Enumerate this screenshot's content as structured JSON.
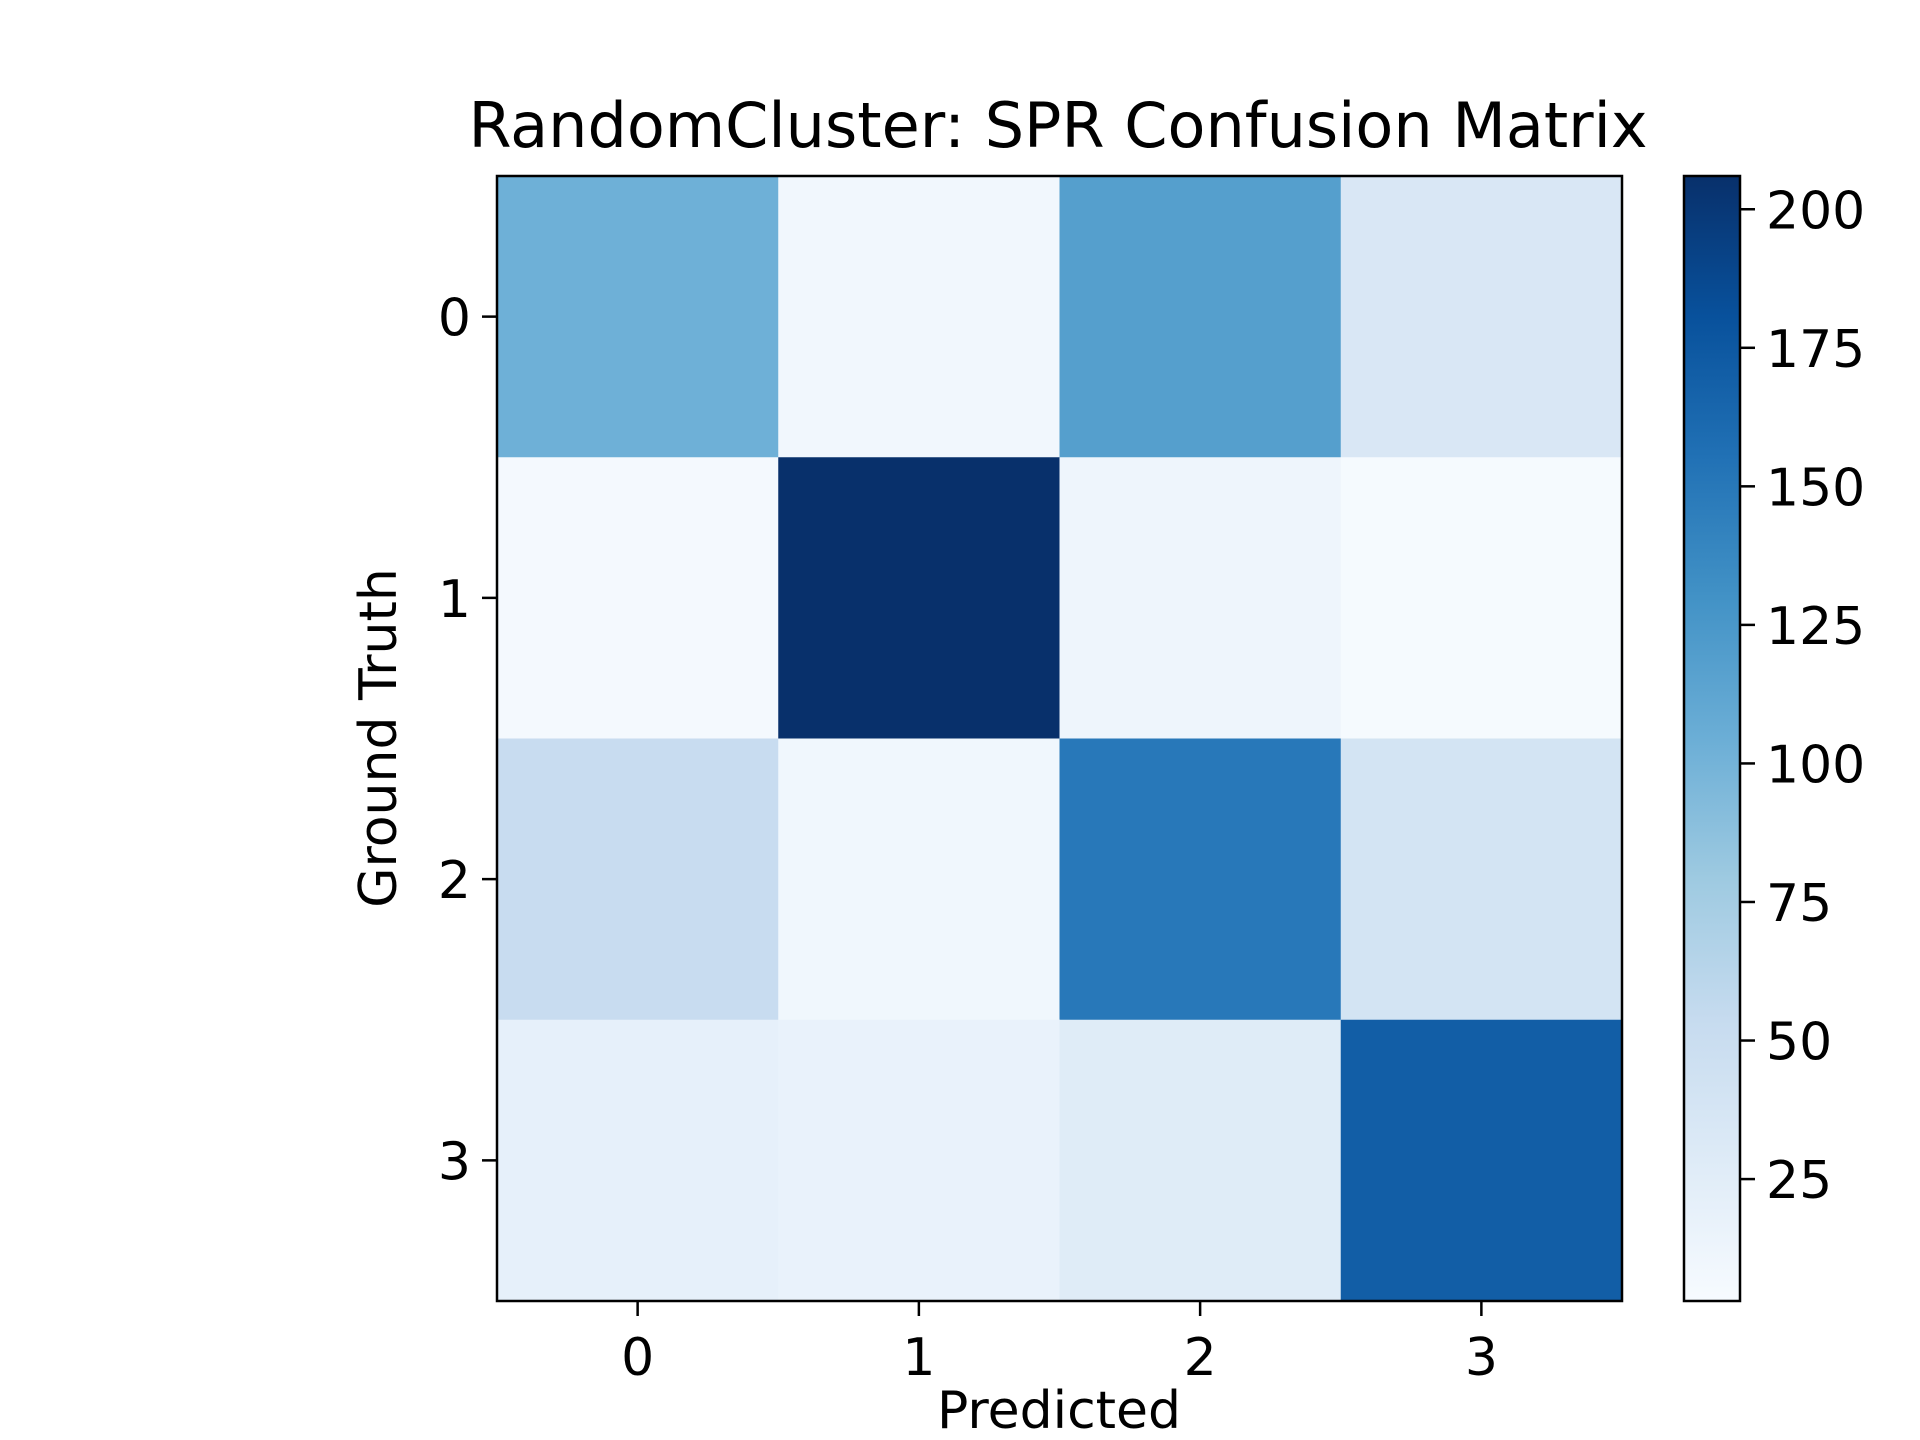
{
  "chart_data": {
    "type": "heatmap",
    "title": "RandomCluster: SPR Confusion Matrix",
    "xlabel": "Predicted",
    "ylabel": "Ground Truth",
    "x_categories": [
      "0",
      "1",
      "2",
      "3"
    ],
    "y_categories": [
      "0",
      "1",
      "2",
      "3"
    ],
    "values": [
      [
        103,
        9,
        118,
        34
      ],
      [
        6,
        206,
        12,
        5
      ],
      [
        52,
        10,
        150,
        40
      ],
      [
        20,
        17,
        27,
        170
      ]
    ],
    "colorbar": {
      "colormap": "Blues",
      "vmin": 3,
      "vmax": 206,
      "ticks": [
        25,
        50,
        75,
        100,
        125,
        150,
        175,
        200
      ],
      "tick_labels": [
        "25",
        "50",
        "75",
        "100",
        "125",
        "150",
        "175",
        "200"
      ]
    },
    "grid": false
  }
}
